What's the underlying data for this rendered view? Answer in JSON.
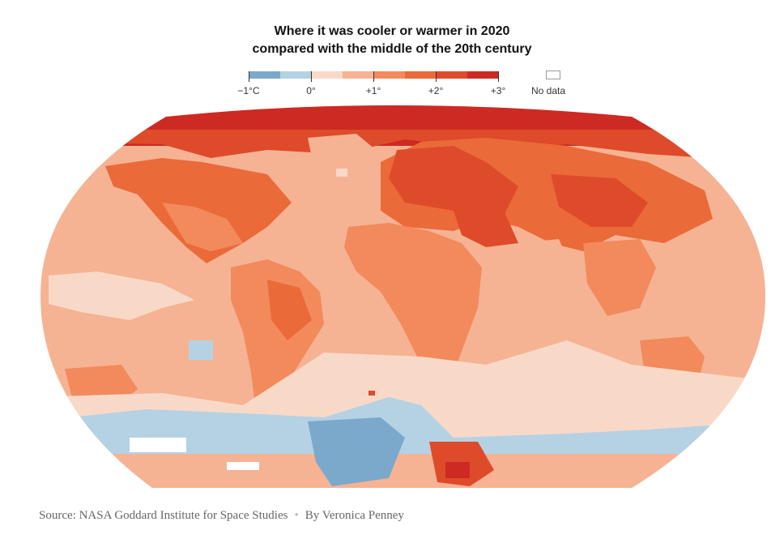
{
  "title_line1": "Where it was cooler or warmer in 2020",
  "title_line2": "compared with the middle of the 20th century",
  "legend": {
    "colors": [
      "#7aa9cb",
      "#b5d1e4",
      "#f8d9c8",
      "#f5b393",
      "#f28a5c",
      "#ea6a3a",
      "#de4b2a",
      "#cc2a22"
    ],
    "labels": [
      {
        "text": "−1°C",
        "value": -1
      },
      {
        "text": "0°",
        "value": 0
      },
      {
        "text": "+1°",
        "value": 1
      },
      {
        "text": "+2°",
        "value": 2
      },
      {
        "text": "+3°",
        "value": 3
      }
    ],
    "range": [
      -1,
      3
    ],
    "no_data_label": "No data"
  },
  "source": {
    "text": "Source: NASA Goddard Institute for Space Studies",
    "byline": "By Veronica Penney"
  }
}
